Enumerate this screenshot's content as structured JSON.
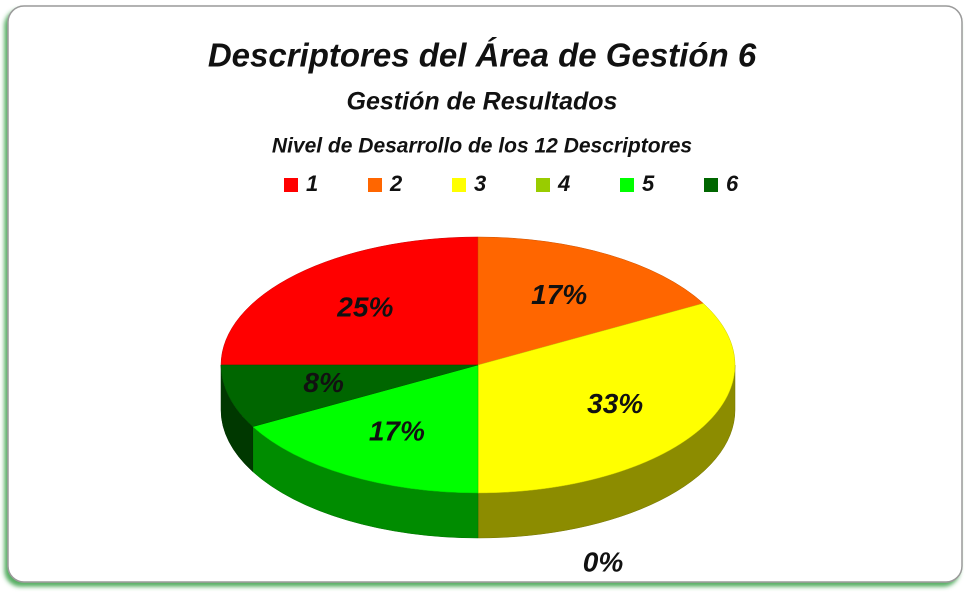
{
  "chart_data": {
    "type": "pie",
    "title": "Descriptores del Área de Gestión 6",
    "subtitle": "Gestión de Resultados",
    "caption": "Nivel de Desarrollo de los 12 Descriptores",
    "categories": [
      "1",
      "2",
      "3",
      "4",
      "5",
      "6"
    ],
    "values": [
      25,
      17,
      33,
      0,
      17,
      8
    ],
    "value_labels": [
      "25%",
      "17%",
      "33%",
      "0%",
      "17%",
      "8%"
    ],
    "colors": [
      "#ff0000",
      "#ff6600",
      "#ffff00",
      "#99cc00",
      "#00ff00",
      "#006600"
    ],
    "legend": "top"
  }
}
